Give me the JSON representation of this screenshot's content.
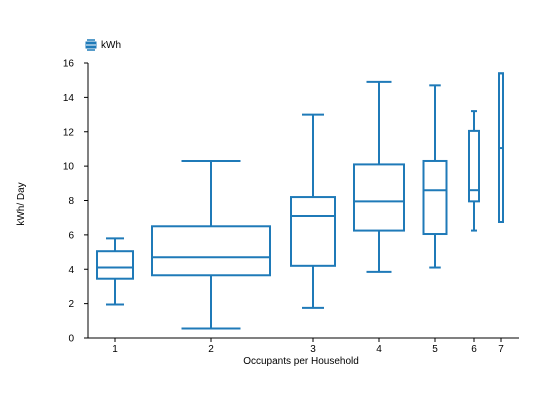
{
  "chart_data": {
    "type": "box",
    "xlabel": "Occupants per Household",
    "ylabel": "kWh/ Day",
    "ylim": [
      0,
      16
    ],
    "yticks": [
      0,
      2,
      4,
      6,
      8,
      10,
      12,
      14,
      16
    ],
    "categories": [
      "1",
      "2",
      "3",
      "4",
      "5",
      "6",
      "7"
    ],
    "series": [
      {
        "name": "kWh",
        "color": "#1f7ab8",
        "boxes": [
          {
            "category": "1",
            "min": 1.95,
            "q1": 3.45,
            "median": 4.1,
            "q3": 5.05,
            "max": 5.8
          },
          {
            "category": "2",
            "min": 0.55,
            "q1": 3.65,
            "median": 4.7,
            "q3": 6.5,
            "max": 10.3
          },
          {
            "category": "3",
            "min": 1.75,
            "q1": 4.2,
            "median": 7.1,
            "q3": 8.2,
            "max": 13.0
          },
          {
            "category": "4",
            "min": 3.85,
            "q1": 6.25,
            "median": 7.95,
            "q3": 10.1,
            "max": 14.9
          },
          {
            "category": "5",
            "min": 4.1,
            "q1": 6.05,
            "median": 8.6,
            "q3": 10.3,
            "max": 14.7
          },
          {
            "category": "6",
            "min": 6.25,
            "q1": 7.95,
            "median": 8.6,
            "q3": 12.05,
            "max": 13.2
          },
          {
            "category": "7",
            "min": 6.75,
            "q1": 6.75,
            "median": 11.05,
            "q3": 15.4,
            "max": 15.4
          }
        ]
      }
    ],
    "legend": {
      "position": "top-left",
      "entries": [
        "kWh"
      ]
    },
    "grid": false
  },
  "icons": {
    "legend_marker": "box-plot-legend-icon"
  }
}
